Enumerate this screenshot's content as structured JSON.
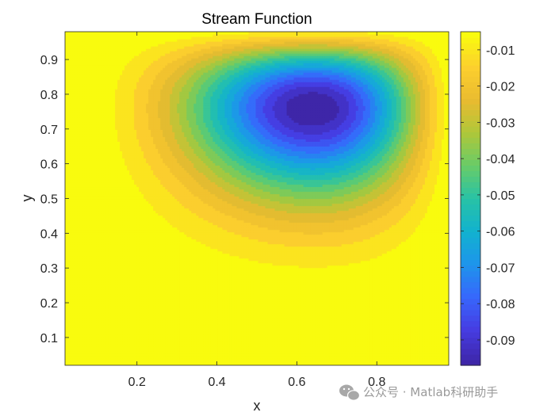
{
  "chart_data": {
    "type": "contourf",
    "title": "Stream Function",
    "xlabel": "x",
    "ylabel": "y",
    "xlim": [
      0.02,
      0.98
    ],
    "ylim": [
      0.02,
      0.98
    ],
    "xticks": [
      0.2,
      0.4,
      0.6,
      0.8
    ],
    "xtick_labels": [
      "0.2",
      "0.4",
      "0.6",
      "0.8"
    ],
    "yticks": [
      0.1,
      0.2,
      0.3,
      0.4,
      0.5,
      0.6,
      0.7,
      0.8,
      0.9
    ],
    "ytick_labels": [
      "0.1",
      "0.2",
      "0.3",
      "0.4",
      "0.5",
      "0.6",
      "0.7",
      "0.8",
      "0.9"
    ],
    "vortex_center": [
      0.64,
      0.76
    ],
    "min_value": -0.1,
    "max_value": 0.0,
    "colorbar": {
      "colormap": "parula",
      "range": [
        -0.097,
        -0.005
      ],
      "ticks": [
        -0.01,
        -0.02,
        -0.03,
        -0.04,
        -0.05,
        -0.06,
        -0.07,
        -0.08,
        -0.09
      ],
      "tick_labels": [
        "-0.01",
        "-0.02",
        "-0.03",
        "-0.04",
        "-0.05",
        "-0.06",
        "-0.07",
        "-0.08",
        "-0.09"
      ]
    },
    "contour_levels": 20,
    "grid": false
  },
  "watermark": {
    "text": "公众号 · Matlab科研助手",
    "icon": "wechat-icon"
  }
}
